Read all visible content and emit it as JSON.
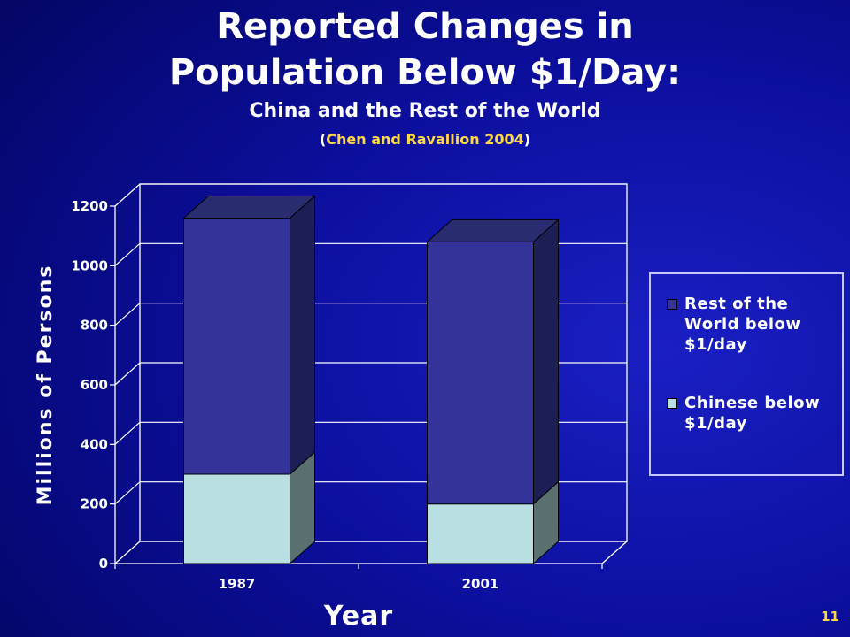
{
  "slide": {
    "title_line1": "Reported Changes in",
    "title_line2": "Population Below $1/Day:",
    "subtitle": "China and the Rest of the World",
    "citation_open": "(",
    "citation_text": "Chen and Ravallion 2004",
    "citation_close": ")",
    "slide_number": "11"
  },
  "colors": {
    "rest_front": "#333399",
    "rest_side": "#1c1f55",
    "rest_top": "#2a2c70",
    "china_front": "#b9dfe2",
    "china_side": "#5a7070",
    "china_top": "#6d8585",
    "citation": "#ffd84a"
  },
  "chart_data": {
    "type": "bar",
    "stacked": true,
    "three_d": true,
    "categories": [
      "1987",
      "2001"
    ],
    "series": [
      {
        "name": "Chinese below $1/day",
        "values": [
          300,
          200
        ]
      },
      {
        "name": "Rest of the World below $1/day",
        "values": [
          860,
          880
        ]
      }
    ],
    "yticks": [
      "0",
      "200",
      "400",
      "600",
      "800",
      "1000",
      "1200"
    ],
    "ylim": [
      0,
      1200
    ],
    "xlabel": "Year",
    "ylabel": "Millions of Persons",
    "grid": true,
    "legend_position": "right",
    "legend": [
      {
        "label": "Rest of the World below $1/day",
        "lines": [
          "Rest of the",
          "World below",
          "$1/day"
        ],
        "color": "#333399"
      },
      {
        "label": "Chinese below $1/day",
        "lines": [
          "Chinese below",
          "$1/day"
        ],
        "color": "#b9dfe2"
      }
    ]
  }
}
